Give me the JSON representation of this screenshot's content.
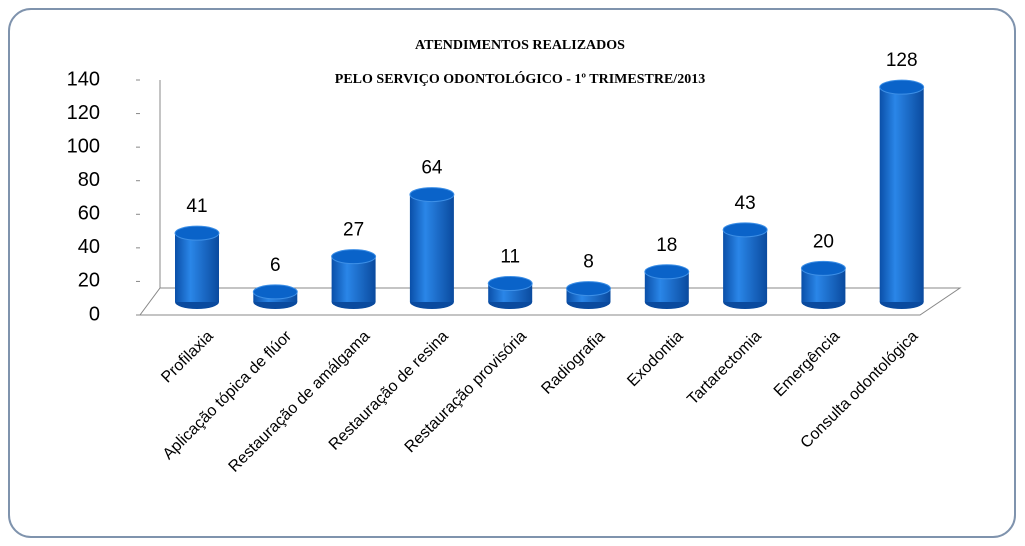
{
  "chart_data": {
    "type": "bar3d",
    "title": "ATENDIMENTOS REALIZADOS",
    "subtitle": "PELO SERVIÇO ODONTOLÓGICO - 1º TRIMESTRE/2013",
    "categories": [
      "Profilaxia",
      "Aplicação tópica de flúor",
      "Restauração de amálgama",
      "Restauração de resina",
      "Restauração provisória",
      "Radiografia",
      "Exodontia",
      "Tartarectomia",
      "Emergência",
      "Consulta odontológica"
    ],
    "values": [
      41,
      6,
      27,
      64,
      11,
      8,
      18,
      43,
      20,
      128
    ],
    "color": "#0a63c9",
    "ylim": [
      0,
      140
    ],
    "yticks": [
      0,
      20,
      40,
      60,
      80,
      100,
      120,
      140
    ],
    "grid": false
  }
}
